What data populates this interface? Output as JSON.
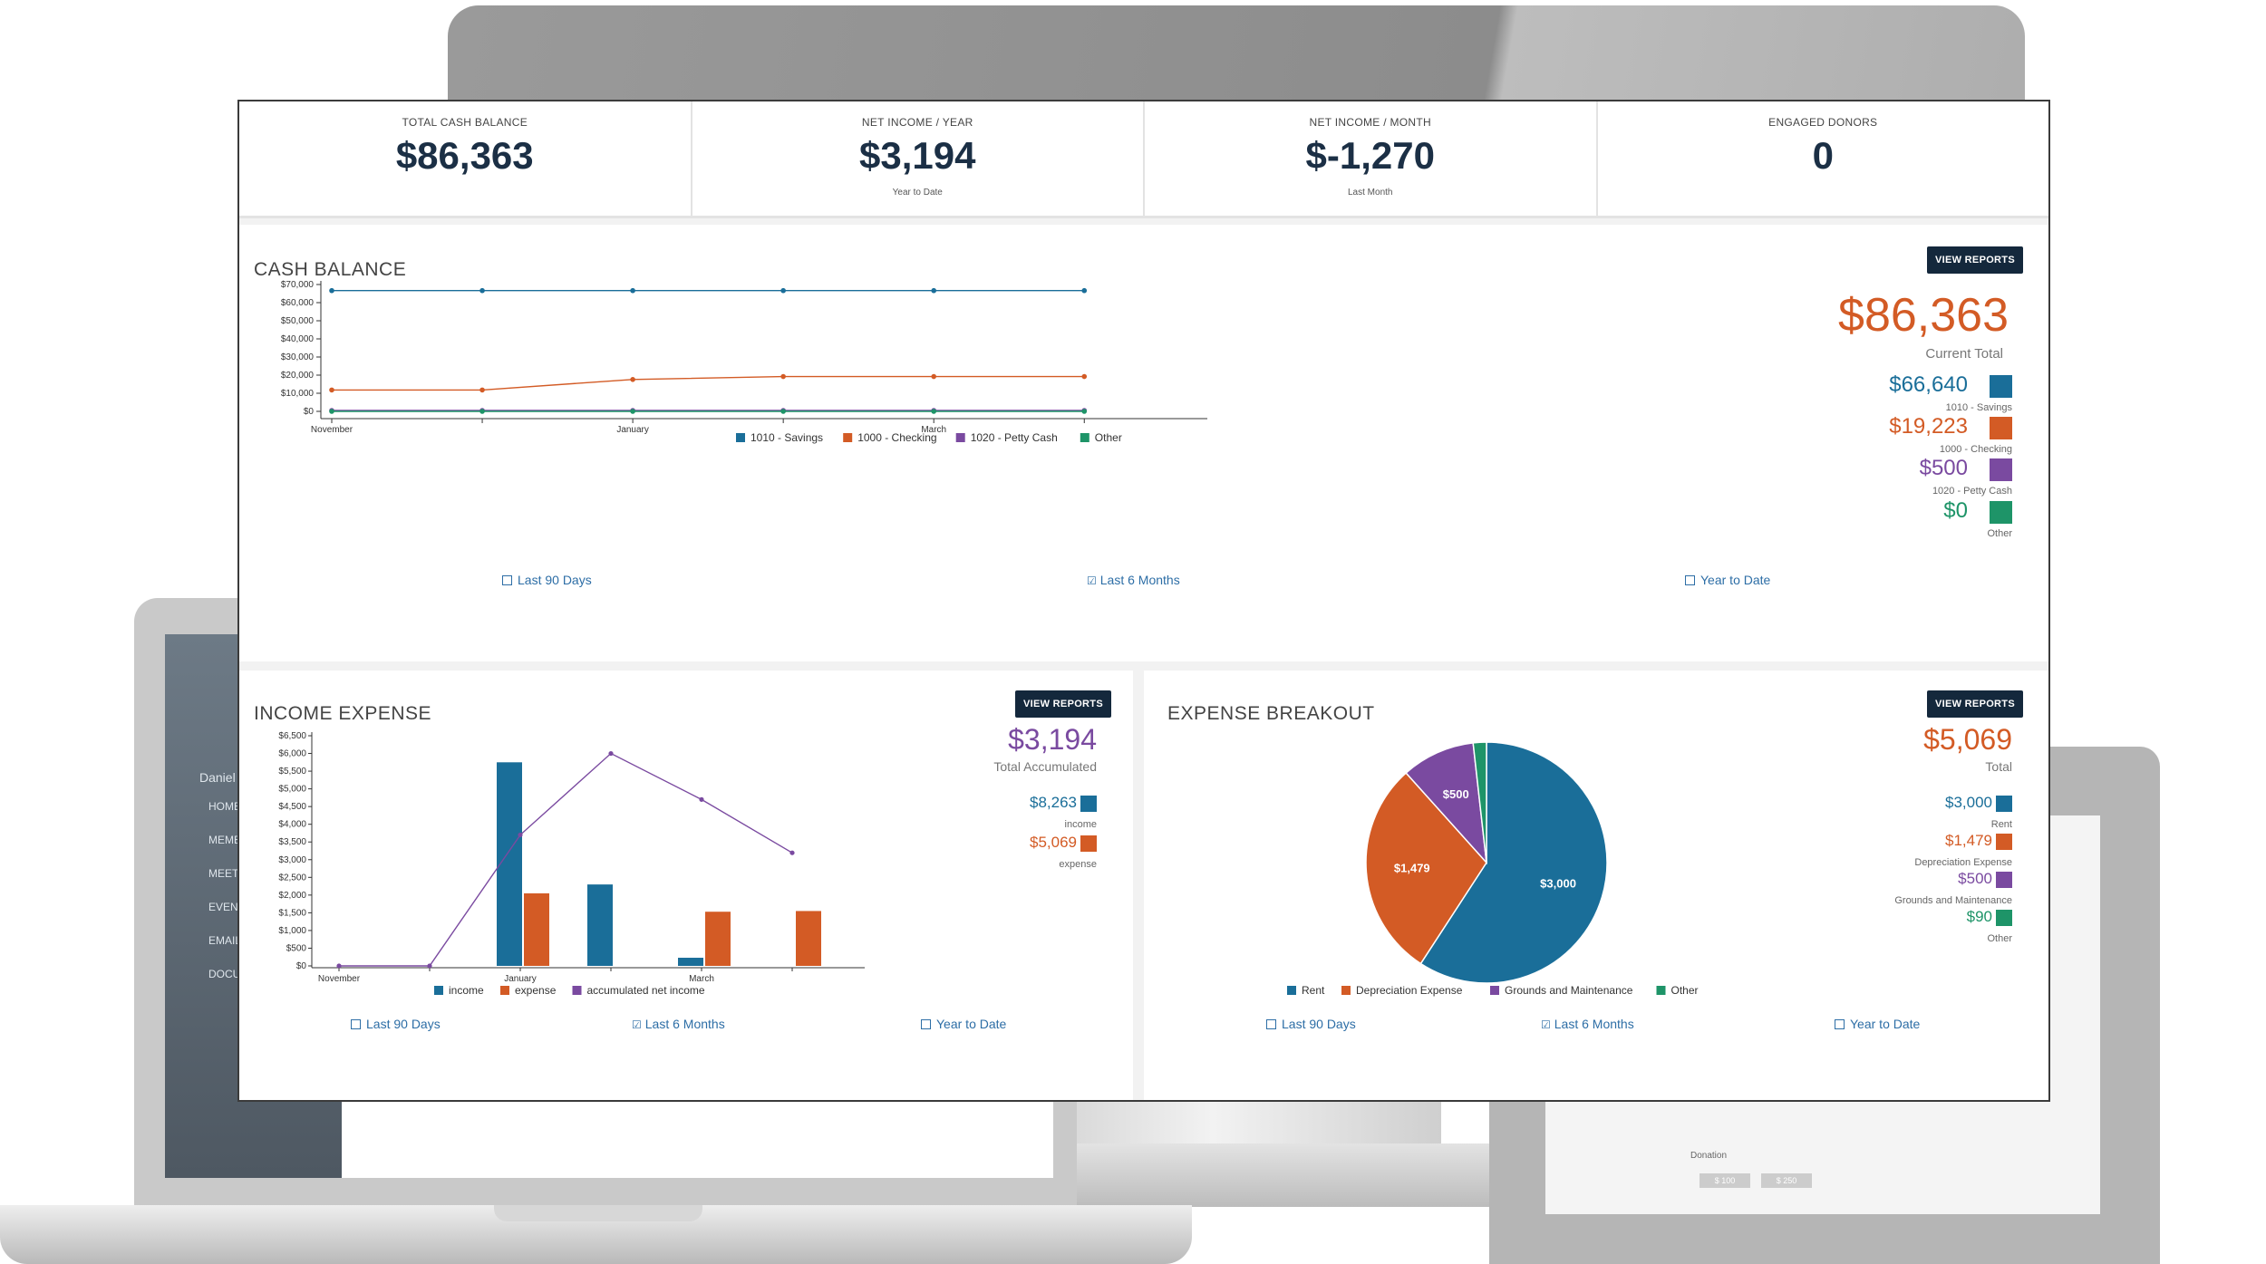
{
  "background_devices": {
    "laptop_sidebar": {
      "user": "Daniel",
      "items": [
        "HOME",
        "MEMB",
        "MEET",
        "EVENT",
        "EMAIL",
        "DOCU"
      ]
    },
    "tablet_form": {
      "section": "Donation",
      "amount_a": "$ 100",
      "amount_b": "$ 250"
    }
  },
  "kpis": [
    {
      "label": "TOTAL CASH BALANCE",
      "value": "$86,363",
      "sub": ""
    },
    {
      "label": "NET INCOME / YEAR",
      "value": "$3,194",
      "sub": "Year to Date"
    },
    {
      "label": "NET INCOME / MONTH",
      "value": "$-1,270",
      "sub": "Last Month"
    },
    {
      "label": "ENGAGED DONORS",
      "value": "0",
      "sub": ""
    }
  ],
  "cash_balance": {
    "title": "CASH BALANCE",
    "view_reports": "VIEW REPORTS",
    "total": "$86,363",
    "total_label": "Current Total",
    "legend": [
      {
        "value": "$66,640",
        "label": "1010 - Savings",
        "color": "#1a6e99"
      },
      {
        "value": "$19,223",
        "label": "1000 - Checking",
        "color": "#d35b25"
      },
      {
        "value": "$500",
        "label": "1020 - Petty Cash",
        "color": "#7a4aa0"
      },
      {
        "value": "$0",
        "label": "Other",
        "color": "#1e9468"
      }
    ],
    "ranges": {
      "last90": "Last 90 Days",
      "last6": "Last 6 Months",
      "ytd": "Year to Date"
    }
  },
  "income_expense": {
    "title": "INCOME EXPENSE",
    "view_reports": "VIEW REPORTS",
    "total": "$3,194",
    "total_label": "Total Accumulated",
    "legend": [
      {
        "value": "$8,263",
        "label": "income",
        "color": "#1a6e99"
      },
      {
        "value": "$5,069",
        "label": "expense",
        "color": "#d35b25"
      }
    ],
    "ranges": {
      "last90": "Last 90 Days",
      "last6": "Last 6 Months",
      "ytd": "Year to Date"
    }
  },
  "expense_breakout": {
    "title": "EXPENSE BREAKOUT",
    "view_reports": "VIEW REPORTS",
    "total": "$5,069",
    "total_label": "Total",
    "legend": [
      {
        "value": "$3,000",
        "label": "Rent",
        "color": "#1a6e99"
      },
      {
        "value": "$1,479",
        "label": "Depreciation Expense",
        "color": "#d35b25"
      },
      {
        "value": "$500",
        "label": "Grounds and Maintenance",
        "color": "#7a4aa0"
      },
      {
        "value": "$90",
        "label": "Other",
        "color": "#1e9468"
      }
    ],
    "ranges": {
      "last90": "Last 90 Days",
      "last6": "Last 6 Months",
      "ytd": "Year to Date"
    }
  },
  "chart_data": [
    {
      "type": "line",
      "title": "CASH BALANCE",
      "x_ticks": [
        "November",
        "January",
        "March"
      ],
      "x": [
        0,
        1,
        2,
        3,
        4,
        5
      ],
      "ylim": [
        0,
        70000
      ],
      "y_ticks": [
        "$0",
        "$10,000",
        "$20,000",
        "$30,000",
        "$40,000",
        "$50,000",
        "$60,000",
        "$70,000"
      ],
      "series": [
        {
          "name": "1010 - Savings",
          "color": "#1a6e99",
          "values": [
            66640,
            66640,
            66640,
            66640,
            66640,
            66640
          ]
        },
        {
          "name": "1000 - Checking",
          "color": "#d35b25",
          "values": [
            11800,
            11800,
            17600,
            19223,
            19223,
            19223
          ]
        },
        {
          "name": "1020 - Petty Cash",
          "color": "#7a4aa0",
          "values": [
            500,
            500,
            500,
            500,
            500,
            500
          ]
        },
        {
          "name": "Other",
          "color": "#1e9468",
          "values": [
            0,
            0,
            0,
            0,
            0,
            0
          ]
        }
      ]
    },
    {
      "type": "bar",
      "title": "INCOME EXPENSE",
      "x_ticks": [
        "November",
        "January",
        "March"
      ],
      "ylim": [
        0,
        6500
      ],
      "y_ticks": [
        "$0",
        "$500",
        "$1,000",
        "$1,500",
        "$2,000",
        "$2,500",
        "$3,000",
        "$3,500",
        "$4,000",
        "$4,500",
        "$5,000",
        "$5,500",
        "$6,000",
        "$6,500"
      ],
      "series": [
        {
          "name": "income",
          "color": "#1a6e99",
          "values": [
            0,
            0,
            5750,
            2300,
            230,
            0
          ]
        },
        {
          "name": "expense",
          "color": "#d35b25",
          "values": [
            0,
            0,
            2050,
            0,
            1530,
            1550
          ]
        },
        {
          "name": "accumulated net income",
          "color": "#7a4aa0",
          "values": [
            0,
            0,
            3700,
            6000,
            4700,
            3194
          ]
        }
      ]
    },
    {
      "type": "pie",
      "title": "EXPENSE BREAKOUT",
      "slices": [
        {
          "name": "Rent",
          "value": 3000,
          "label": "$3,000",
          "color": "#1a6e99"
        },
        {
          "name": "Depreciation Expense",
          "value": 1479,
          "label": "$1,479",
          "color": "#d35b25"
        },
        {
          "name": "Grounds and Maintenance",
          "value": 500,
          "label": "$500",
          "color": "#7a4aa0"
        },
        {
          "name": "Other",
          "value": 90,
          "label": "",
          "color": "#1e9468"
        }
      ]
    }
  ]
}
